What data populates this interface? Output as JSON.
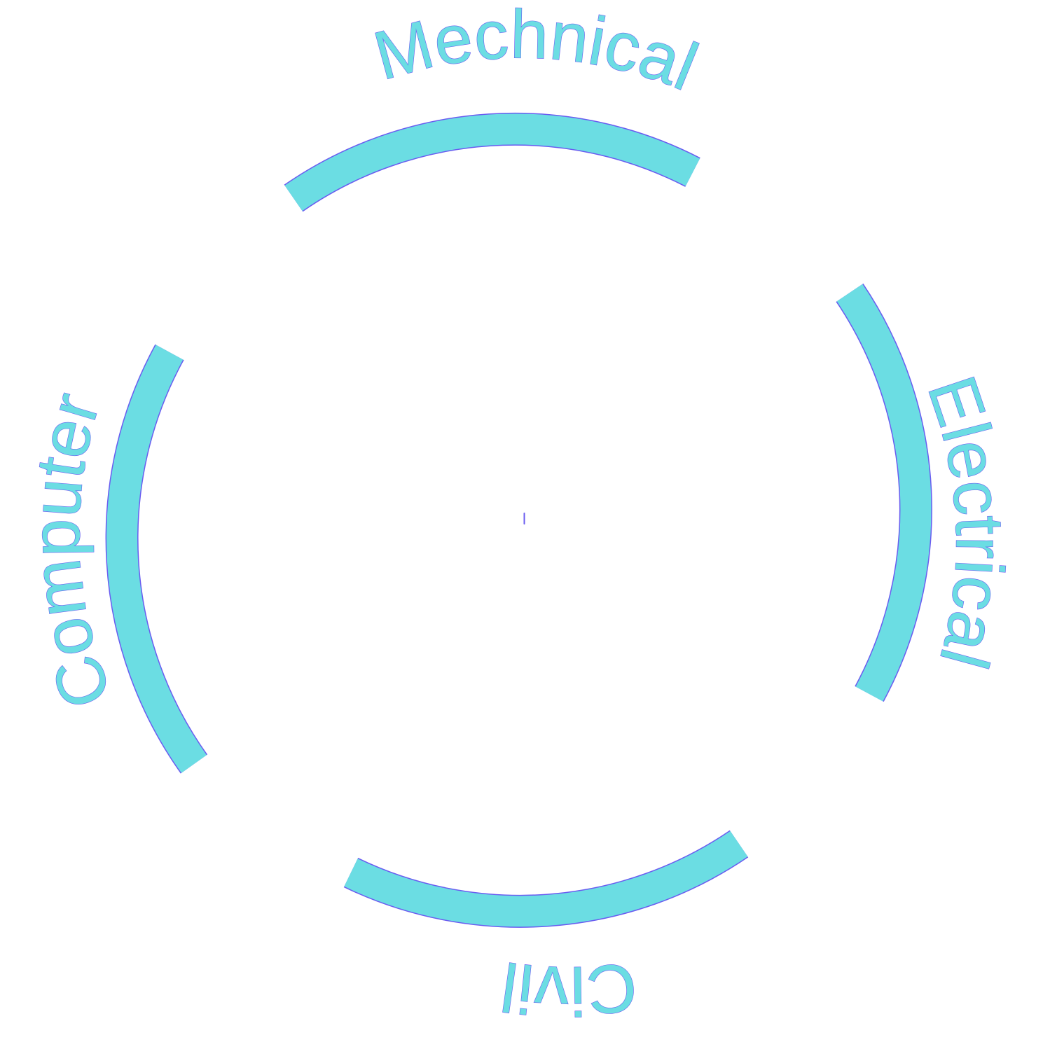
{
  "diagram": {
    "type": "circular-wheel",
    "colors": {
      "fill": "#6bdde3",
      "outline": "#6a5cf0",
      "background": "#ffffff"
    },
    "segments": [
      {
        "id": "mechanical",
        "label": "Mechnical",
        "position": "top"
      },
      {
        "id": "electrical",
        "label": "Electrical",
        "position": "right"
      },
      {
        "id": "civil",
        "label": "Civil",
        "position": "bottom"
      },
      {
        "id": "computer",
        "label": "Computer",
        "position": "left"
      }
    ]
  }
}
